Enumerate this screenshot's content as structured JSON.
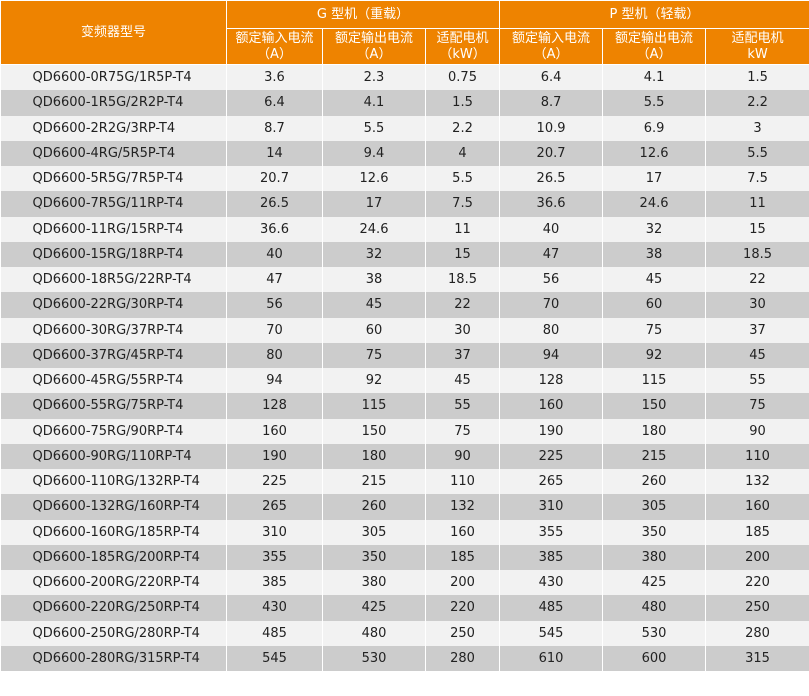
{
  "header": {
    "model": "变频器型号",
    "g_group": "G 型机（重载）",
    "p_group": "P 型机（轻载）",
    "g_cols": [
      {
        "name": "额定输入电流",
        "unit": "（A）"
      },
      {
        "name": "额定输出电流",
        "unit": "（A）"
      },
      {
        "name": "适配电机",
        "unit": "（kW）"
      }
    ],
    "p_cols": [
      {
        "name": "额定输入电流",
        "unit": "（A）"
      },
      {
        "name": "额定输出电流",
        "unit": "（A）"
      },
      {
        "name": "适配电机",
        "unit": "kW"
      }
    ]
  },
  "rows": [
    [
      "QD6600-0R75G/1R5P-T4",
      "3.6",
      "2.3",
      "0.75",
      "6.4",
      "4.1",
      "1.5"
    ],
    [
      "QD6600-1R5G/2R2P-T4",
      "6.4",
      "4.1",
      "1.5",
      "8.7",
      "5.5",
      "2.2"
    ],
    [
      "QD6600-2R2G/3RP-T4",
      "8.7",
      "5.5",
      "2.2",
      "10.9",
      "6.9",
      "3"
    ],
    [
      "QD6600-4RG/5R5P-T4",
      "14",
      "9.4",
      "4",
      "20.7",
      "12.6",
      "5.5"
    ],
    [
      "QD6600-5R5G/7R5P-T4",
      "20.7",
      "12.6",
      "5.5",
      "26.5",
      "17",
      "7.5"
    ],
    [
      "QD6600-7R5G/11RP-T4",
      "26.5",
      "17",
      "7.5",
      "36.6",
      "24.6",
      "11"
    ],
    [
      "QD6600-11RG/15RP-T4",
      "36.6",
      "24.6",
      "11",
      "40",
      "32",
      "15"
    ],
    [
      "QD6600-15RG/18RP-T4",
      "40",
      "32",
      "15",
      "47",
      "38",
      "18.5"
    ],
    [
      "QD6600-18R5G/22RP-T4",
      "47",
      "38",
      "18.5",
      "56",
      "45",
      "22"
    ],
    [
      "QD6600-22RG/30RP-T4",
      "56",
      "45",
      "22",
      "70",
      "60",
      "30"
    ],
    [
      "QD6600-30RG/37RP-T4",
      "70",
      "60",
      "30",
      "80",
      "75",
      "37"
    ],
    [
      "QD6600-37RG/45RP-T4",
      "80",
      "75",
      "37",
      "94",
      "92",
      "45"
    ],
    [
      "QD6600-45RG/55RP-T4",
      "94",
      "92",
      "45",
      "128",
      "115",
      "55"
    ],
    [
      "QD6600-55RG/75RP-T4",
      "128",
      "115",
      "55",
      "160",
      "150",
      "75"
    ],
    [
      "QD6600-75RG/90RP-T4",
      "160",
      "150",
      "75",
      "190",
      "180",
      "90"
    ],
    [
      "QD6600-90RG/110RP-T4",
      "190",
      "180",
      "90",
      "225",
      "215",
      "110"
    ],
    [
      "QD6600-110RG/132RP-T4",
      "225",
      "215",
      "110",
      "265",
      "260",
      "132"
    ],
    [
      "QD6600-132RG/160RP-T4",
      "265",
      "260",
      "132",
      "310",
      "305",
      "160"
    ],
    [
      "QD6600-160RG/185RP-T4",
      "310",
      "305",
      "160",
      "355",
      "350",
      "185"
    ],
    [
      "QD6600-185RG/200RP-T4",
      "355",
      "350",
      "185",
      "385",
      "380",
      "200"
    ],
    [
      "QD6600-200RG/220RP-T4",
      "385",
      "380",
      "200",
      "430",
      "425",
      "220"
    ],
    [
      "QD6600-220RG/250RP-T4",
      "430",
      "425",
      "220",
      "485",
      "480",
      "250"
    ],
    [
      "QD6600-250RG/280RP-T4",
      "485",
      "480",
      "250",
      "545",
      "530",
      "280"
    ],
    [
      "QD6600-280RG/315RP-T4",
      "545",
      "530",
      "280",
      "610",
      "600",
      "315"
    ]
  ]
}
